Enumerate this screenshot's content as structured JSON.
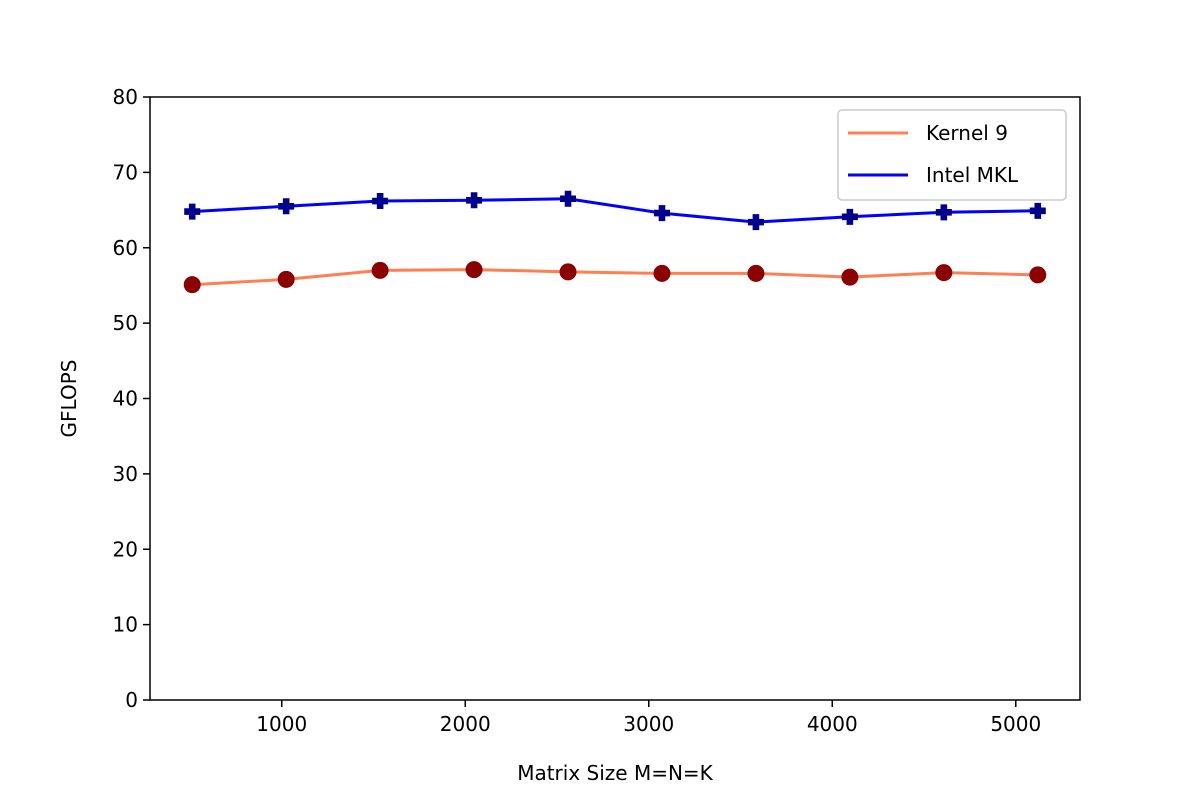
{
  "chart_data": {
    "type": "line",
    "title": "",
    "xlabel": "Matrix Size M=N=K",
    "ylabel": "GFLOPS",
    "xlim": [
      282,
      5350
    ],
    "ylim": [
      0,
      80
    ],
    "x_ticks": [
      1000,
      2000,
      3000,
      4000,
      5000
    ],
    "y_ticks": [
      0,
      10,
      20,
      30,
      40,
      50,
      60,
      70,
      80
    ],
    "grid": false,
    "legend_position": "top-right",
    "x": [
      512,
      1024,
      1536,
      2048,
      2560,
      3072,
      3584,
      4096,
      4608,
      5120
    ],
    "series": [
      {
        "name": "Kernel 9",
        "line_color": "#ff7f50",
        "marker_color": "#8b0000",
        "marker": "circle",
        "values": [
          55.1,
          55.8,
          57.0,
          57.1,
          56.8,
          56.6,
          56.6,
          56.1,
          56.7,
          56.4
        ]
      },
      {
        "name": "Intel MKL",
        "line_color": "#0000ff",
        "marker_color": "#00008b",
        "marker": "plus",
        "values": [
          64.8,
          65.5,
          66.2,
          66.3,
          66.5,
          64.6,
          63.4,
          64.1,
          64.7,
          64.9
        ]
      }
    ]
  }
}
